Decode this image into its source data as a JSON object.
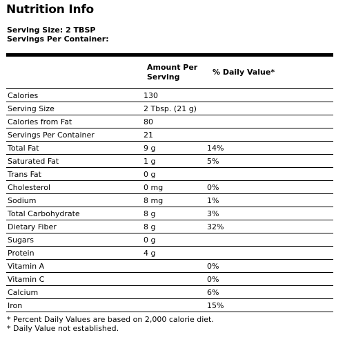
{
  "title": "Nutrition Info",
  "serving_size_line": "Serving Size: 2 TBSP",
  "servings_per_container_line": "Servings Per Container:",
  "headers": {
    "amount": "Amount Per Serving",
    "daily_value": "% Daily Value*"
  },
  "rows": [
    {
      "name": "Calories",
      "amount": "130",
      "dv": ""
    },
    {
      "name": "Serving Size",
      "amount": "2 Tbsp. (21 g)",
      "dv": ""
    },
    {
      "name": "Calories from Fat",
      "amount": "80",
      "dv": ""
    },
    {
      "name": "Servings Per Container",
      "amount": "21",
      "dv": ""
    },
    {
      "name": "Total Fat",
      "amount": "9 g",
      "dv": "14%"
    },
    {
      "name": "Saturated Fat",
      "amount": "1 g",
      "dv": "5%"
    },
    {
      "name": "Trans Fat",
      "amount": "0 g",
      "dv": ""
    },
    {
      "name": "Cholesterol",
      "amount": "0 mg",
      "dv": "0%"
    },
    {
      "name": "Sodium",
      "amount": "8 mg",
      "dv": "1%"
    },
    {
      "name": "Total Carbohydrate",
      "amount": "8 g",
      "dv": "3%"
    },
    {
      "name": "Dietary Fiber",
      "amount": "8 g",
      "dv": "32%"
    },
    {
      "name": "Sugars",
      "amount": "0 g",
      "dv": ""
    },
    {
      "name": "Protein",
      "amount": "4 g",
      "dv": ""
    },
    {
      "name": "Vitamin A",
      "amount": "",
      "dv": "0%"
    },
    {
      "name": "Vitamin C",
      "amount": "",
      "dv": "0%"
    },
    {
      "name": "Calcium",
      "amount": "",
      "dv": "6%"
    },
    {
      "name": "Iron",
      "amount": "",
      "dv": "15%"
    }
  ],
  "footnotes": [
    "* Percent Daily Values are based on 2,000 calorie diet.",
    "* Daily Value not established."
  ]
}
